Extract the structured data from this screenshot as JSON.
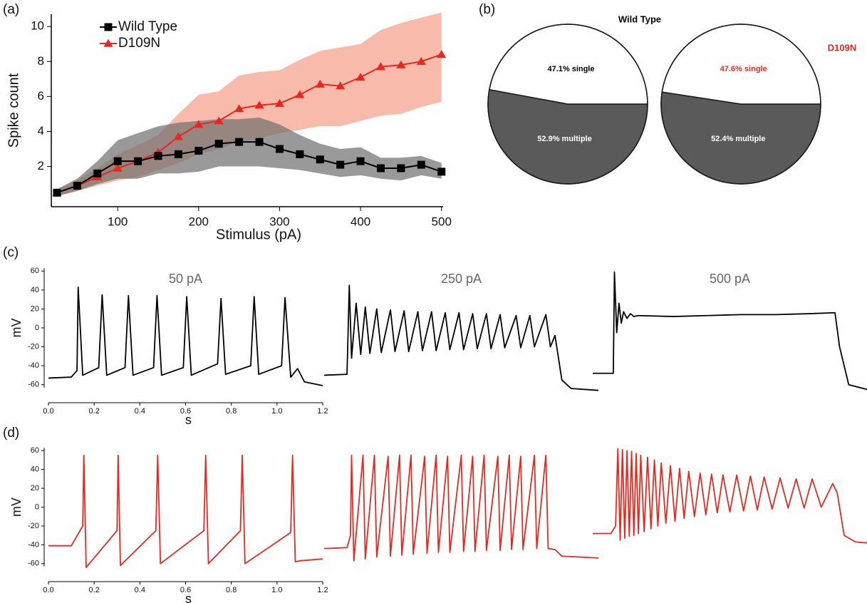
{
  "chart_data": [
    {
      "type": "line",
      "panel": "(a)",
      "xlabel": "Stimulus (pA)",
      "ylabel": "Spike count",
      "legend": "upper left",
      "x": [
        25,
        50,
        75,
        100,
        125,
        150,
        175,
        200,
        225,
        250,
        275,
        300,
        325,
        350,
        375,
        400,
        425,
        450,
        475,
        500
      ],
      "xlim": [
        18,
        502
      ],
      "ylim": [
        -0.3,
        10.7
      ],
      "xticks": [
        100,
        200,
        300,
        400,
        500
      ],
      "yticks": [
        2,
        4,
        6,
        8,
        10
      ],
      "series": [
        {
          "name": "D109N",
          "color": "#e8281e",
          "marker": "triangle",
          "band_color": "#f6a48f",
          "band_opacity": 0.75,
          "values": [
            0.5,
            0.9,
            1.4,
            1.9,
            2.3,
            2.8,
            3.7,
            4.4,
            4.6,
            5.3,
            5.5,
            5.6,
            6.1,
            6.7,
            6.6,
            7.1,
            7.7,
            7.8,
            8.0,
            8.4
          ],
          "band_lower": [
            0.3,
            0.6,
            0.9,
            1.2,
            1.4,
            1.8,
            2.2,
            2.7,
            3.0,
            3.4,
            3.6,
            3.9,
            4.1,
            4.3,
            4.3,
            4.6,
            4.9,
            5.0,
            5.4,
            5.7
          ],
          "band_upper": [
            0.7,
            1.2,
            1.9,
            2.7,
            3.2,
            3.8,
            5.0,
            6.1,
            6.3,
            7.2,
            7.4,
            7.5,
            8.1,
            8.6,
            8.8,
            9.0,
            9.8,
            10.2,
            10.5,
            10.8
          ]
        },
        {
          "name": "Wild Type",
          "color": "#000000",
          "marker": "square",
          "band_color": "#6e6e6e",
          "band_opacity": 0.7,
          "values": [
            0.5,
            0.9,
            1.6,
            2.3,
            2.3,
            2.6,
            2.7,
            2.9,
            3.3,
            3.4,
            3.4,
            3.0,
            2.7,
            2.4,
            2.1,
            2.3,
            1.9,
            1.9,
            2.1,
            1.7
          ],
          "band_lower": [
            0.3,
            0.6,
            1.0,
            1.3,
            1.3,
            1.6,
            1.6,
            1.7,
            2.0,
            2.0,
            2.0,
            1.9,
            1.8,
            1.6,
            1.4,
            1.5,
            1.3,
            1.2,
            1.5,
            1.3
          ],
          "band_upper": [
            0.7,
            1.3,
            2.3,
            3.5,
            3.9,
            4.3,
            4.5,
            4.6,
            4.7,
            4.7,
            4.8,
            4.4,
            3.8,
            3.3,
            3.0,
            3.1,
            2.5,
            2.5,
            2.6,
            2.2
          ]
        }
      ]
    },
    {
      "type": "pie",
      "panel": "(b)",
      "title": "Wild Type",
      "title_color": "#000000",
      "values": [
        47.1,
        52.9
      ],
      "value_labels": [
        "47.1% single",
        "52.9% multiple"
      ],
      "colors": [
        "#ffffff",
        "#5a5a5a"
      ],
      "label_colors": [
        "#000000",
        "#ffffff"
      ]
    },
    {
      "type": "pie",
      "title": "D109N",
      "title_color": "#e8281e",
      "values": [
        47.6,
        52.4
      ],
      "value_labels": [
        "47.6% single",
        "52.4% multiple"
      ],
      "colors": [
        "#ffffff",
        "#5a5a5a"
      ],
      "label_colors": [
        "#e8281e",
        "#ffffff"
      ]
    },
    {
      "type": "line",
      "panel": "(c)",
      "title": "50 pA",
      "xlabel": "s",
      "ylabel": "mV",
      "xlim": [
        0,
        1.2
      ],
      "ylim": [
        -70,
        70
      ],
      "xticks": [
        {
          "value": 0,
          "label": "0.0"
        },
        0.2,
        0.4,
        0.6,
        0.8,
        {
          "value": 1,
          "label": "1.0"
        },
        1.2
      ],
      "yticks": [
        -60,
        -40,
        -20,
        0,
        20,
        40,
        60
      ],
      "x": [
        0,
        0.1,
        0.125,
        0.13,
        0.15,
        0.22,
        0.235,
        0.255,
        0.335,
        0.35,
        0.37,
        0.46,
        0.475,
        0.495,
        0.59,
        0.605,
        0.625,
        0.74,
        0.755,
        0.775,
        0.885,
        0.9,
        0.92,
        1.02,
        1.035,
        1.06,
        1.09,
        1.12,
        1.2
      ],
      "series": [
        {
          "color": "#000000",
          "values": [
            -53,
            -52,
            -45,
            43,
            -50,
            -42,
            35,
            -50,
            -42,
            34,
            -50,
            -42,
            34,
            -50,
            -42,
            33,
            -50,
            -38,
            31,
            -49,
            -40,
            33,
            -49,
            -40,
            32,
            -52,
            -43,
            -57,
            -61
          ]
        }
      ]
    },
    {
      "type": "line",
      "title": "250 pA",
      "xlim": [
        0,
        1.2
      ],
      "ylim": [
        -70,
        70
      ],
      "x": [
        0,
        0.1,
        0.11,
        0.12,
        0.14,
        0.16,
        0.18,
        0.2,
        0.23,
        0.25,
        0.29,
        0.31,
        0.35,
        0.37,
        0.41,
        0.43,
        0.47,
        0.49,
        0.53,
        0.55,
        0.59,
        0.61,
        0.65,
        0.67,
        0.71,
        0.73,
        0.77,
        0.79,
        0.84,
        0.86,
        0.9,
        0.92,
        0.97,
        0.99,
        1.01,
        1.04,
        1.08,
        1.2
      ],
      "series": [
        {
          "color": "#000000",
          "values": [
            -50,
            -49,
            45,
            -32,
            26,
            -28,
            22,
            -27,
            20,
            -26,
            19,
            -25,
            18,
            -25,
            17,
            -24,
            17,
            -24,
            16,
            -23,
            16,
            -23,
            15,
            -22,
            15,
            -22,
            14,
            -21,
            13,
            -21,
            13,
            -20,
            14,
            -20,
            -8,
            -55,
            -64,
            -66
          ]
        }
      ]
    },
    {
      "type": "line",
      "title": "500 pA",
      "xlim": [
        0,
        1.2
      ],
      "ylim": [
        -70,
        70
      ],
      "x": [
        0,
        0.09,
        0.095,
        0.105,
        0.115,
        0.125,
        0.135,
        0.15,
        0.165,
        0.18,
        0.2,
        0.35,
        0.5,
        0.65,
        0.8,
        0.95,
        1.06,
        1.08,
        1.12,
        1.2
      ],
      "series": [
        {
          "color": "#000000",
          "values": [
            -48,
            -48,
            59,
            -5,
            26,
            5,
            17,
            10,
            15,
            12,
            13,
            12,
            13,
            14,
            14,
            15,
            16,
            -20,
            -60,
            -65
          ]
        }
      ]
    },
    {
      "type": "line",
      "panel": "(d)",
      "xlabel": "s",
      "ylabel": "mV",
      "xlim": [
        0,
        1.2
      ],
      "ylim": [
        -70,
        70
      ],
      "xticks": [
        {
          "value": 0,
          "label": "0.0"
        },
        0.2,
        0.4,
        0.6,
        0.8,
        {
          "value": 1,
          "label": "1.0"
        },
        1.2
      ],
      "yticks": [
        -60,
        -40,
        -20,
        0,
        20,
        40,
        60
      ],
      "x": [
        0,
        0.1,
        0.15,
        0.155,
        0.165,
        0.3,
        0.305,
        0.315,
        0.47,
        0.478,
        0.49,
        0.68,
        0.688,
        0.7,
        0.84,
        0.848,
        0.86,
        1.06,
        1.068,
        1.08,
        1.1,
        1.2
      ],
      "series": [
        {
          "color": "#e8281e",
          "values": [
            -41,
            -41,
            -20,
            55,
            -64,
            -25,
            55,
            -62,
            -25,
            55,
            -60,
            -25,
            55,
            -60,
            -25,
            55,
            -60,
            -27,
            55,
            -58,
            -57,
            -55
          ]
        }
      ]
    },
    {
      "type": "line",
      "xlim": [
        0,
        1.2
      ],
      "ylim": [
        -70,
        70
      ],
      "x": [
        0,
        0.1,
        0.115,
        0.12,
        0.13,
        0.17,
        0.18,
        0.22,
        0.23,
        0.28,
        0.29,
        0.33,
        0.34,
        0.38,
        0.39,
        0.44,
        0.45,
        0.49,
        0.5,
        0.54,
        0.55,
        0.6,
        0.61,
        0.65,
        0.66,
        0.7,
        0.71,
        0.76,
        0.77,
        0.81,
        0.82,
        0.86,
        0.87,
        0.92,
        0.93,
        0.97,
        0.98,
        1.01,
        1.04,
        1.2
      ],
      "series": [
        {
          "color": "#e8281e",
          "values": [
            -44,
            -43,
            -30,
            55,
            -57,
            55,
            -55,
            55,
            -53,
            54,
            -52,
            55,
            -51,
            55,
            -50,
            54,
            -49,
            55,
            -48,
            54,
            -48,
            55,
            -47,
            54,
            -47,
            55,
            -46,
            54,
            -46,
            55,
            -45,
            54,
            -45,
            55,
            -44,
            55,
            -44,
            -45,
            -52,
            -54
          ]
        }
      ]
    },
    {
      "type": "line",
      "xlim": [
        0,
        1.2
      ],
      "ylim": [
        -70,
        70
      ],
      "x": [
        0,
        0.08,
        0.1,
        0.11,
        0.12,
        0.13,
        0.14,
        0.15,
        0.16,
        0.17,
        0.18,
        0.19,
        0.2,
        0.21,
        0.225,
        0.24,
        0.255,
        0.27,
        0.285,
        0.3,
        0.32,
        0.34,
        0.36,
        0.38,
        0.4,
        0.42,
        0.445,
        0.47,
        0.495,
        0.52,
        0.545,
        0.57,
        0.6,
        0.63,
        0.66,
        0.69,
        0.72,
        0.75,
        0.785,
        0.82,
        0.855,
        0.89,
        0.925,
        0.96,
        1.0,
        1.05,
        1.07,
        1.1,
        1.15,
        1.2
      ],
      "series": [
        {
          "color": "#e8281e",
          "values": [
            -28,
            -28,
            -20,
            62,
            -35,
            61,
            -33,
            60,
            -31,
            59,
            -30,
            57,
            -28,
            55,
            -26,
            53,
            -23,
            50,
            -20,
            47,
            -17,
            44,
            -15,
            41,
            -12,
            38,
            -10,
            36,
            -8,
            35,
            -6,
            34,
            -5,
            34,
            -4,
            33,
            -3,
            32,
            -2,
            31,
            -1,
            30,
            -1,
            30,
            0,
            25,
            15,
            -30,
            -37,
            -38
          ]
        }
      ]
    }
  ]
}
